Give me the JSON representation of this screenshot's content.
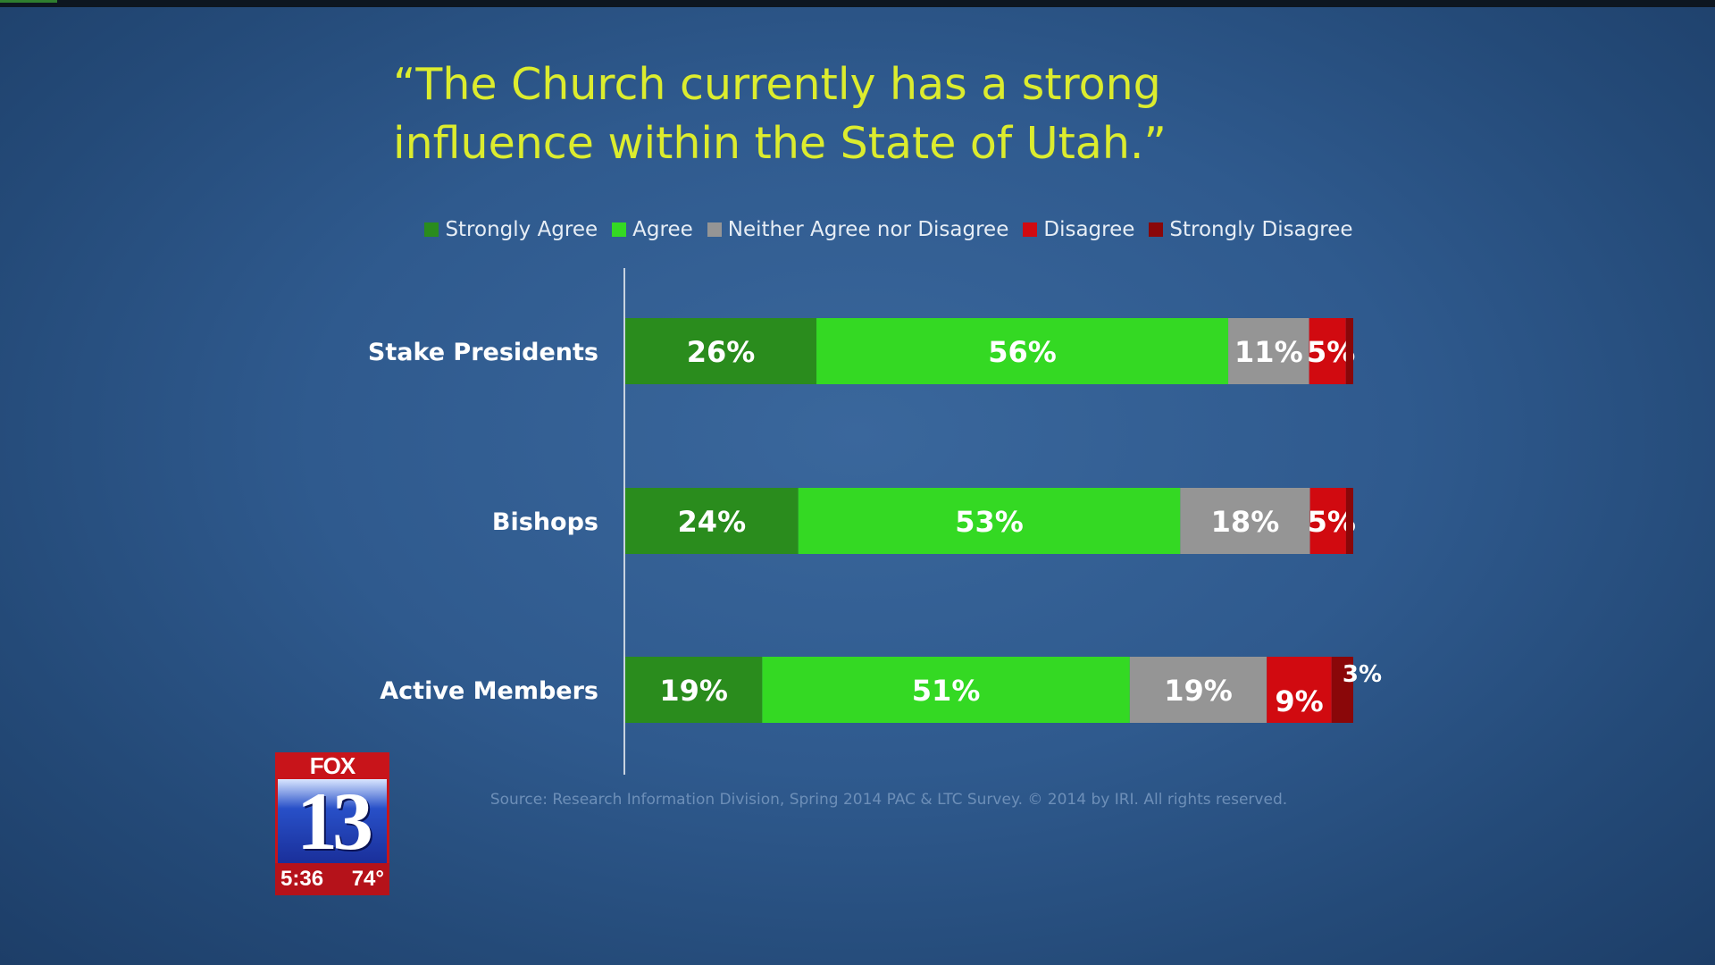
{
  "title": "“The Church currently has a strong influence within the State of Utah.”",
  "colors": {
    "strongly_agree": "#2a8c1d",
    "agree": "#34d923",
    "neither": "#959595",
    "disagree": "#d10a10",
    "strongly_disagree": "#8a0709",
    "title": "#dcec2e"
  },
  "chart_data": {
    "type": "bar",
    "orientation": "horizontal",
    "stacked": true,
    "title": "“The Church currently has a strong influence within the State of Utah.”",
    "categories": [
      "Stake Presidents",
      "Bishops",
      "Active Members"
    ],
    "series": [
      {
        "name": "Strongly Agree",
        "color": "#2a8c1d",
        "values": [
          26,
          24,
          19
        ],
        "labels": [
          "26%",
          "24%",
          "19%"
        ]
      },
      {
        "name": "Agree",
        "color": "#34d923",
        "values": [
          56,
          53,
          51
        ],
        "labels": [
          "56%",
          "53%",
          "51%"
        ]
      },
      {
        "name": "Neither Agree nor Disagree",
        "color": "#959595",
        "values": [
          11,
          18,
          19
        ],
        "labels": [
          "11%",
          "18%",
          "19%"
        ]
      },
      {
        "name": "Disagree",
        "color": "#d10a10",
        "values": [
          5,
          5,
          9
        ],
        "labels": [
          "5%",
          "5%",
          "9%"
        ]
      },
      {
        "name": "Strongly Disagree",
        "color": "#8a0709",
        "values": [
          1,
          1,
          3
        ],
        "labels": [
          "",
          "",
          "3%"
        ]
      }
    ],
    "xlim": [
      0,
      100
    ],
    "legend": "top",
    "grid": false
  },
  "source": "Source: Research Information Division, Spring 2014 PAC & LTC Survey. © 2014 by IRI.  All rights reserved.",
  "logo": {
    "network": "FOX",
    "channel": "13",
    "time": "5:36",
    "temperature": "74°"
  }
}
